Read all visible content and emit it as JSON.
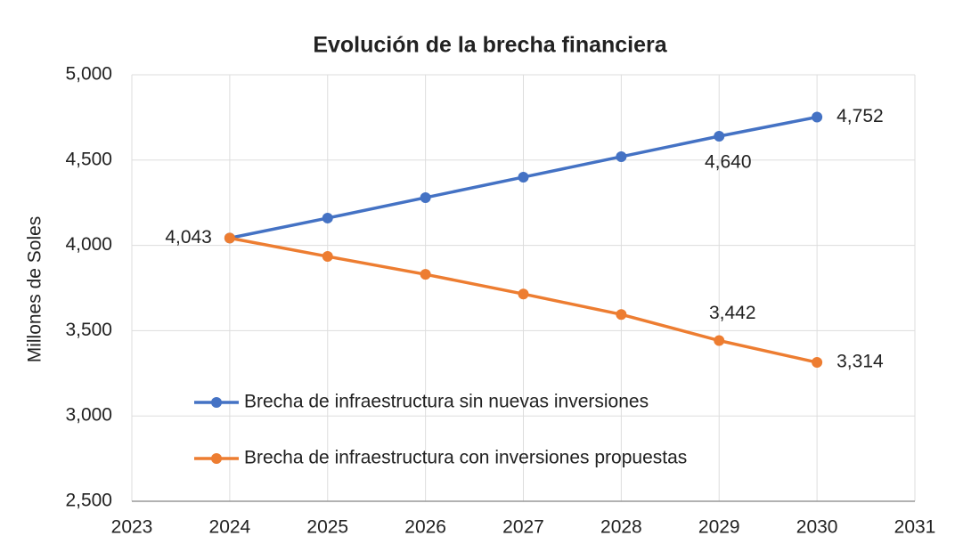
{
  "chart_data": {
    "type": "line",
    "title": "Evolución de la brecha financiera",
    "y_label": "Millones de Soles",
    "x": [
      2024,
      2025,
      2026,
      2027,
      2028,
      2029,
      2030
    ],
    "series": [
      {
        "name": "Brecha de infraestructura sin nuevas inversiones",
        "color": "#4472c4",
        "values": [
          4043,
          4160,
          4280,
          4400,
          4520,
          4640,
          4752
        ],
        "value_labels": [
          "4,043",
          null,
          null,
          null,
          null,
          "4,640",
          "4,752"
        ]
      },
      {
        "name": "Brecha de infraestructura con inversiones propuestas",
        "color": "#ed7d31",
        "values": [
          4043,
          3935,
          3830,
          3715,
          3595,
          3442,
          3314
        ],
        "value_labels": [
          null,
          null,
          null,
          null,
          null,
          "3,442",
          "3,314"
        ]
      }
    ],
    "xlim": [
      2023,
      2031
    ],
    "xticks": [
      2023,
      2024,
      2025,
      2026,
      2027,
      2028,
      2029,
      2030,
      2031
    ],
    "ylim": [
      2500,
      5000
    ],
    "yticks": [
      {
        "value": 2500,
        "label": "2,500"
      },
      {
        "value": 3000,
        "label": "3,000"
      },
      {
        "value": 3500,
        "label": "3,500"
      },
      {
        "value": 4000,
        "label": "4,000"
      },
      {
        "value": 4500,
        "label": "4,500"
      },
      {
        "value": 5000,
        "label": "5,000"
      }
    ],
    "grid": true,
    "legend": "lower left"
  }
}
